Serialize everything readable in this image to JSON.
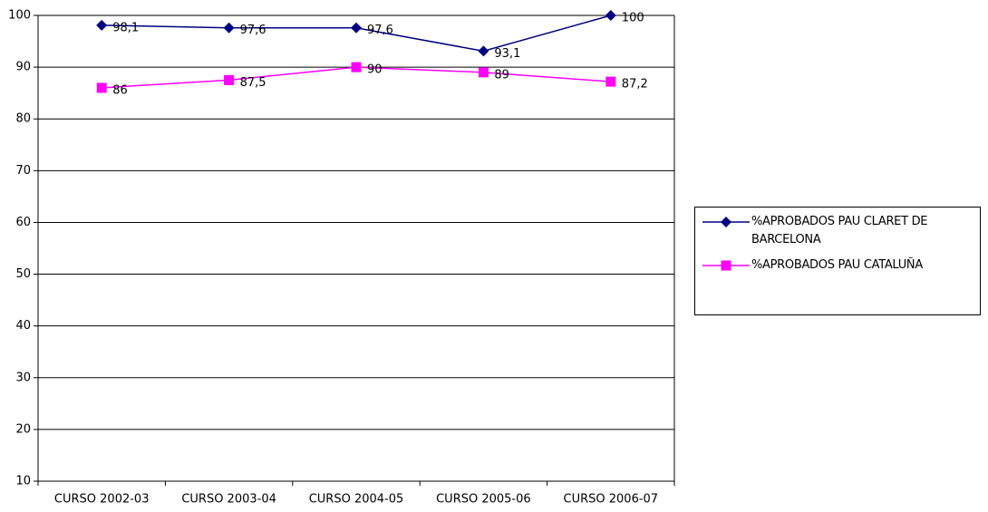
{
  "chart_data": {
    "type": "line",
    "categories": [
      "CURSO 2002-03",
      "CURSO 2003-04",
      "CURSO 2004-05",
      "CURSO 2005-06",
      "CURSO 2006-07"
    ],
    "series": [
      {
        "name": "%APROBADOS PAU CLARET DE BARCELONA",
        "color": "#000080",
        "marker": "diamond",
        "values": [
          98.1,
          97.6,
          97.6,
          93.1,
          100
        ],
        "value_labels": [
          "98,1",
          "97,6",
          "97,6",
          "93,1",
          "100"
        ]
      },
      {
        "name": "%APROBADOS PAU CATALUÑA",
        "color": "#ff00ff",
        "marker": "square",
        "values": [
          86,
          87.5,
          90,
          89,
          87.2
        ],
        "value_labels": [
          "86",
          "87,5",
          "90",
          "89",
          "87,2"
        ]
      }
    ],
    "ylim": [
      10,
      100
    ],
    "yticks": [
      10,
      20,
      30,
      40,
      50,
      60,
      70,
      80,
      90,
      100
    ],
    "grid": true,
    "legend": "right"
  }
}
